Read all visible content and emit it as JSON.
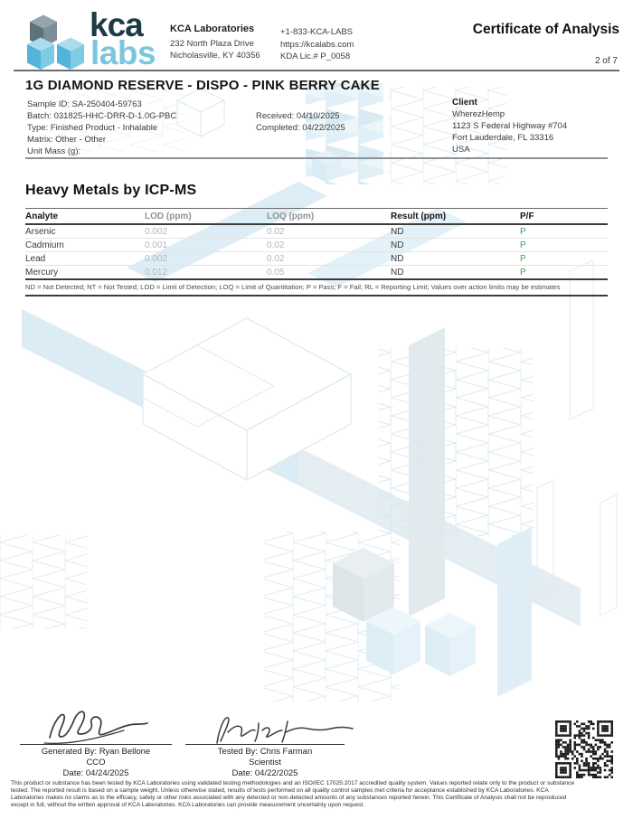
{
  "header": {
    "logo": {
      "kca": "kca",
      "labs": "labs"
    },
    "company": {
      "name": "KCA Laboratories",
      "address1": "232 North Plaza Drive",
      "address2": "Nicholasville, KY 40356"
    },
    "contact": {
      "phone": "+1-833-KCA-LABS",
      "website": "https://kcalabs.com",
      "license": "KDA Lic.# P_0058"
    },
    "doc_type": "Certificate of Analysis",
    "page_indicator": "2 of 7"
  },
  "sample": {
    "title": "1G DIAMOND RESERVE - DISPO - PINK BERRY CAKE",
    "lines": [
      "Sample ID: SA-250404-59763",
      "Batch: 031825-HHC-DRR-D-1.0G-PBC",
      "Type: Finished Product - Inhalable",
      "Matrix: Other - Other",
      "Unit Mass (g):"
    ],
    "received": "Received: 04/10/2025",
    "completed": "Completed: 04/22/2025"
  },
  "client": {
    "label": "Client",
    "name": "WherezHemp",
    "address1": "1123 S Federal Highway #704",
    "address2": "Fort Lauderdale, FL 33316",
    "country": "USA"
  },
  "heavy_metals": {
    "section_title": "Heavy Metals by ICP-MS",
    "columns": [
      "Analyte",
      "LOD (ppm)",
      "LOQ (ppm)",
      "Result (ppm)",
      "P/F"
    ],
    "rows": [
      {
        "analyte": "Arsenic",
        "lod": "0.002",
        "loq": "0.02",
        "result": "ND",
        "pf": "P"
      },
      {
        "analyte": "Cadmium",
        "lod": "0.001",
        "loq": "0.02",
        "result": "ND",
        "pf": "P"
      },
      {
        "analyte": "Lead",
        "lod": "0.002",
        "loq": "0.02",
        "result": "ND",
        "pf": "P"
      },
      {
        "analyte": "Mercury",
        "lod": "0.012",
        "loq": "0.05",
        "result": "ND",
        "pf": "P"
      }
    ],
    "footnote": "ND = Not Detected; NT = Not Tested; LOD = Limit of Detection; LOQ = Limit of Quantitation; P = Pass; F = Fail; RL = Reporting Limit; Values over action limits may be estimates"
  },
  "signatures": {
    "generated": {
      "by": "Generated By: Ryan Bellone",
      "title": "CCO",
      "date": "Date: 04/24/2025"
    },
    "tested": {
      "by": "Tested By: Chris Farman",
      "title": "Scientist",
      "date": "Date: 04/22/2025"
    }
  },
  "disclaimer": {
    "lines": [
      "This product or substance has been tested by KCA Laboratories using validated testing methodologies and an ISO/IEC 17025:2017 accredited quality system. Values reported relate only to the product or substance",
      "tested. The reported result is based on a sample weight. Unless otherwise stated, results of tests performed on all quality control samples met criteria for acceptance established by KCA Laboratories. KCA",
      "Laboratories makes no claims as to the efficacy, safety or other risks associated with any detected or non-detected amounts of any substances reported herein. This Certificate of Analysis shall not be reproduced",
      "except in full, without the written approval of KCA Laboratories. KCA Laboratories can provide measurement uncertainty upon request."
    ]
  },
  "colors": {
    "brand_teal": "#1d3b46",
    "brand_light_blue": "#7cc5e0",
    "pass_green": "#3f9e55",
    "muted_gray": "#8d9397"
  }
}
